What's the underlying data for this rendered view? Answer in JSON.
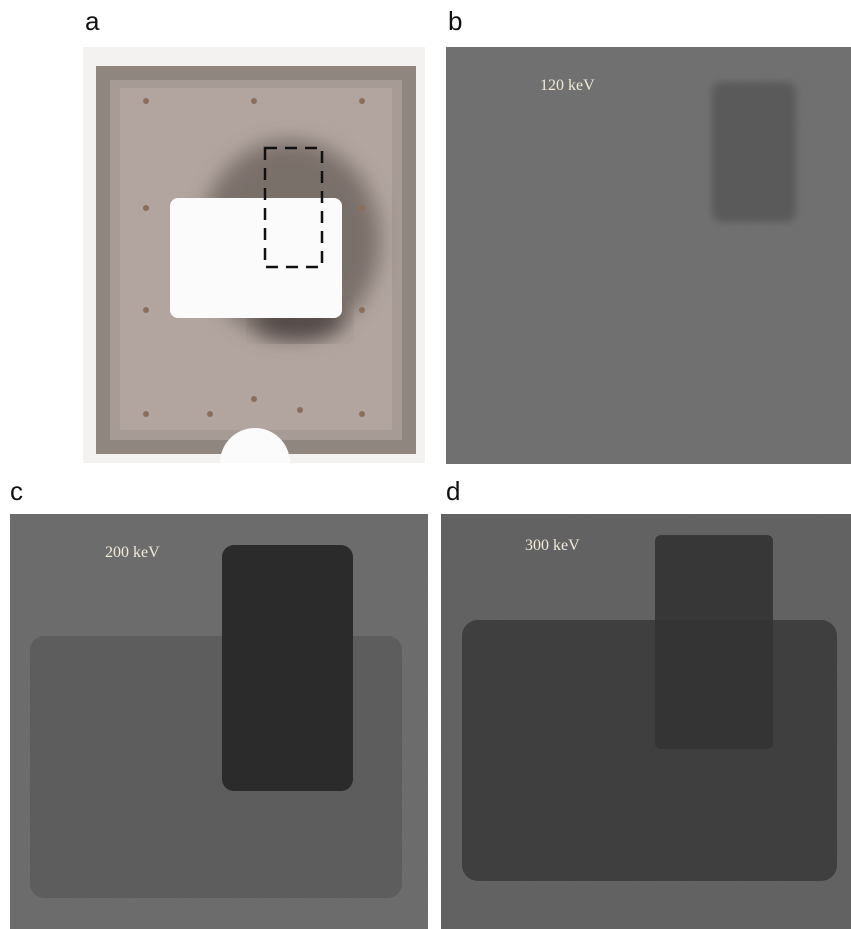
{
  "panels": [
    {
      "label": "a"
    },
    {
      "label": "b",
      "annotation": "120 keV"
    },
    {
      "label": "c",
      "annotation": "200 keV"
    },
    {
      "label": "d",
      "annotation": "300 keV"
    }
  ]
}
